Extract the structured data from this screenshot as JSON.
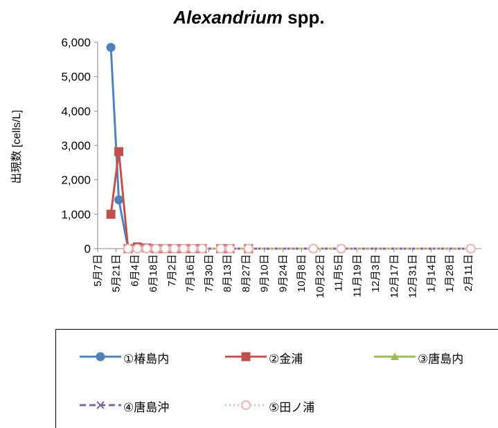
{
  "chart_data": {
    "type": "line",
    "title_italic": "Alexandrium",
    "title_rest": " spp.",
    "ylabel": "出現数 [cells/L]",
    "xlabel": "",
    "ylim": [
      0,
      6000
    ],
    "yticks": [
      "0",
      "1,000",
      "2,000",
      "3,000",
      "4,000",
      "5,000",
      "6,000"
    ],
    "ytick_values": [
      0,
      1000,
      2000,
      3000,
      4000,
      5000,
      6000
    ],
    "categories": [
      "5月7日",
      "5月21日",
      "6月4日",
      "6月18日",
      "7月2日",
      "7月16日",
      "7月30日",
      "8月13日",
      "8月27日",
      "9月10日",
      "9月24日",
      "10月8日",
      "10月22日",
      "11月5日",
      "11月19日",
      "12月3日",
      "12月17日",
      "12月31日",
      "1月14日",
      "1月28日",
      "2月11日"
    ],
    "x_dates_days": [
      0,
      14,
      28,
      42,
      56,
      70,
      84,
      98,
      112,
      126,
      140,
      154,
      168,
      182,
      196,
      210,
      224,
      238,
      252,
      266,
      280
    ],
    "legend_placement": "bottom",
    "series": [
      {
        "name": "①椿島内",
        "color": "#4F81BD",
        "marker": "circle",
        "dash": "solid",
        "points": [
          [
            10,
            5850
          ],
          [
            16,
            1420
          ],
          [
            23,
            0
          ],
          [
            30,
            50
          ],
          [
            37,
            20
          ],
          [
            44,
            0
          ],
          [
            51,
            0
          ],
          [
            58,
            0
          ],
          [
            65,
            0
          ],
          [
            72,
            0
          ],
          [
            79,
            0
          ],
          [
            93,
            0
          ],
          [
            100,
            0
          ],
          [
            114,
            0
          ]
        ]
      },
      {
        "name": "②金浦",
        "color": "#C0504D",
        "marker": "square",
        "dash": "solid",
        "points": [
          [
            10,
            1000
          ],
          [
            16,
            2820
          ],
          [
            23,
            0
          ],
          [
            30,
            50
          ],
          [
            37,
            20
          ],
          [
            44,
            0
          ],
          [
            51,
            0
          ],
          [
            58,
            0
          ],
          [
            65,
            0
          ],
          [
            72,
            0
          ],
          [
            79,
            0
          ],
          [
            93,
            0
          ],
          [
            100,
            0
          ],
          [
            114,
            0
          ]
        ]
      },
      {
        "name": "③唐島内",
        "color": "#9BBB59",
        "marker": "triangle",
        "dash": "solid",
        "points": [
          [
            23,
            0
          ],
          [
            30,
            0
          ],
          [
            37,
            0
          ],
          [
            44,
            0
          ],
          [
            51,
            0
          ],
          [
            58,
            0
          ],
          [
            65,
            0
          ],
          [
            72,
            0
          ],
          [
            79,
            0
          ],
          [
            93,
            0
          ],
          [
            100,
            0
          ],
          [
            114,
            0
          ],
          [
            163,
            0
          ],
          [
            184,
            0
          ],
          [
            282,
            0
          ]
        ]
      },
      {
        "name": "④唐島沖",
        "color": "#8064A2",
        "marker": "x",
        "dash": "dash",
        "points": [
          [
            23,
            0
          ],
          [
            30,
            0
          ],
          [
            37,
            0
          ],
          [
            44,
            0
          ],
          [
            51,
            0
          ],
          [
            58,
            0
          ],
          [
            65,
            0
          ],
          [
            72,
            0
          ],
          [
            79,
            0
          ],
          [
            93,
            0
          ],
          [
            100,
            0
          ],
          [
            114,
            0
          ],
          [
            163,
            0
          ],
          [
            184,
            0
          ],
          [
            282,
            0
          ]
        ]
      },
      {
        "name": "⑤田ノ浦",
        "color": "#E6B9B8",
        "marker": "open-circle",
        "dash": "dot",
        "points": [
          [
            23,
            0
          ],
          [
            30,
            0
          ],
          [
            37,
            0
          ],
          [
            44,
            0
          ],
          [
            51,
            0
          ],
          [
            58,
            0
          ],
          [
            65,
            0
          ],
          [
            72,
            0
          ],
          [
            79,
            0
          ],
          [
            93,
            0
          ],
          [
            100,
            0
          ],
          [
            114,
            0
          ],
          [
            163,
            0
          ],
          [
            184,
            0
          ],
          [
            282,
            0
          ]
        ]
      }
    ]
  }
}
